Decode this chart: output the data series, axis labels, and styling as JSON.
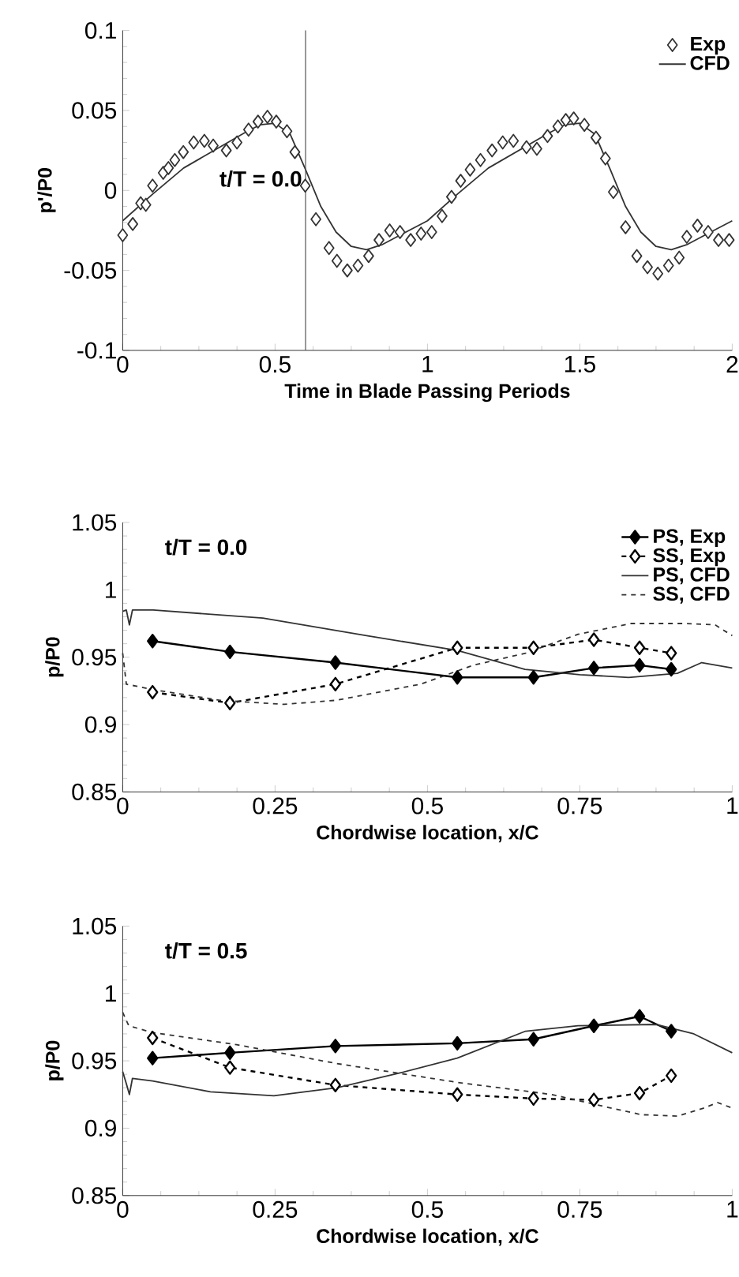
{
  "chart_data": [
    {
      "type": "line",
      "xlabel": "Time in Blade Passing Periods",
      "ylabel": "p'/P0",
      "xlim": [
        0,
        2
      ],
      "ylim": [
        -0.1,
        0.1
      ],
      "xticks": [
        0,
        0.5,
        1,
        1.5,
        2
      ],
      "yticks": [
        -0.1,
        -0.05,
        0,
        0.05,
        0.1
      ],
      "legend": "top right",
      "grid": false,
      "annotations": [
        "t/T = 0.0"
      ],
      "ref_lines": [
        {
          "axis": "x",
          "value": 0.6,
          "color": "#555555"
        }
      ],
      "series": [
        {
          "name": "Exp",
          "type": "scatter",
          "marker": "diamond",
          "color": "#333333",
          "x": [
            0,
            0.033,
            0.059,
            0.076,
            0.098,
            0.133,
            0.15,
            0.171,
            0.199,
            0.233,
            0.268,
            0.297,
            0.34,
            0.375,
            0.413,
            0.444,
            0.475,
            0.504,
            0.539,
            0.565,
            0.599,
            0.634,
            0.677,
            0.703,
            0.737,
            0.772,
            0.807,
            0.841,
            0.876,
            0.91,
            0.945,
            0.979,
            1.014,
            1.048,
            1.079,
            1.109,
            1.14,
            1.174,
            1.212,
            1.247,
            1.282,
            1.325,
            1.359,
            1.394,
            1.428,
            1.454,
            1.48,
            1.515,
            1.553,
            1.584,
            1.61,
            1.65,
            1.687,
            1.722,
            1.756,
            1.791,
            1.826,
            1.851,
            1.886,
            1.921,
            1.955,
            1.99
          ],
          "values": [
            -0.028,
            -0.021,
            -0.008,
            -0.009,
            0.003,
            0.011,
            0.014,
            0.019,
            0.024,
            0.03,
            0.031,
            0.028,
            0.025,
            0.03,
            0.038,
            0.043,
            0.046,
            0.043,
            0.037,
            0.024,
            0.003,
            -0.018,
            -0.036,
            -0.044,
            -0.05,
            -0.047,
            -0.041,
            -0.031,
            -0.025,
            -0.026,
            -0.031,
            -0.027,
            -0.026,
            -0.016,
            -0.004,
            0.006,
            0.013,
            0.019,
            0.025,
            0.03,
            0.031,
            0.027,
            0.026,
            0.034,
            0.04,
            0.044,
            0.045,
            0.041,
            0.033,
            0.02,
            -0.001,
            -0.023,
            -0.041,
            -0.048,
            -0.052,
            -0.047,
            -0.042,
            -0.029,
            -0.022,
            -0.026,
            -0.031,
            -0.031
          ]
        },
        {
          "name": "CFD",
          "type": "line",
          "marker": "none",
          "line_style": "solid",
          "color": "#333333",
          "x": [
            0,
            0.1,
            0.2,
            0.3,
            0.4,
            0.45,
            0.5,
            0.55,
            0.6,
            0.65,
            0.7,
            0.75,
            0.8,
            0.85,
            0.9,
            1,
            1.1,
            1.2,
            1.3,
            1.4,
            1.45,
            1.5,
            1.55,
            1.6,
            1.65,
            1.7,
            1.75,
            1.8,
            1.85,
            1.9,
            2
          ],
          "values": [
            -0.019,
            -0.002,
            0.014,
            0.025,
            0.036,
            0.041,
            0.042,
            0.035,
            0.013,
            -0.01,
            -0.026,
            -0.035,
            -0.037,
            -0.034,
            -0.029,
            -0.019,
            -0.002,
            0.014,
            0.025,
            0.036,
            0.041,
            0.042,
            0.035,
            0.013,
            -0.01,
            -0.026,
            -0.035,
            -0.037,
            -0.034,
            -0.029,
            -0.019
          ]
        }
      ]
    },
    {
      "type": "line",
      "xlabel": "Chordwise location, x/C",
      "ylabel": "p/P0",
      "xlim": [
        0,
        1
      ],
      "ylim": [
        0.85,
        1.05
      ],
      "xticks": [
        0,
        0.25,
        0.5,
        0.75,
        1
      ],
      "yticks": [
        0.85,
        0.9,
        0.95,
        1,
        1.05
      ],
      "legend": "top right",
      "grid": false,
      "annotations": [
        "t/T = 0.0"
      ],
      "series": [
        {
          "name": "PS, Exp",
          "marker": "diamond",
          "line_style": "solid",
          "color": "#000000",
          "x": [
            0.049,
            0.176,
            0.349,
            0.549,
            0.674,
            0.773,
            0.848,
            0.9
          ],
          "values": [
            0.962,
            0.954,
            0.946,
            0.935,
            0.935,
            0.942,
            0.944,
            0.941
          ]
        },
        {
          "name": "SS, Exp",
          "marker": "diamond",
          "line_style": "dashed",
          "color": "#000000",
          "x": [
            0.049,
            0.176,
            0.349,
            0.549,
            0.674,
            0.773,
            0.848,
            0.9
          ],
          "values": [
            0.924,
            0.916,
            0.93,
            0.957,
            0.957,
            0.963,
            0.957,
            0.953
          ]
        },
        {
          "name": "PS, CFD",
          "marker": "none",
          "line_style": "solid",
          "color": "#333333",
          "x": [
            0,
            0.006,
            0.011,
            0.016,
            0.05,
            0.23,
            0.4,
            0.549,
            0.66,
            0.75,
            0.83,
            0.91,
            0.95,
            1
          ],
          "values": [
            0.984,
            0.985,
            0.974,
            0.985,
            0.985,
            0.979,
            0.966,
            0.955,
            0.941,
            0.937,
            0.935,
            0.938,
            0.946,
            0.942
          ]
        },
        {
          "name": "SS, CFD",
          "marker": "none",
          "line_style": "dashed",
          "color": "#333333",
          "x": [
            0,
            0.006,
            0.049,
            0.16,
            0.265,
            0.35,
            0.489,
            0.575,
            0.661,
            0.747,
            0.834,
            0.92,
            0.972,
            1
          ],
          "values": [
            0.953,
            0.93,
            0.926,
            0.918,
            0.915,
            0.918,
            0.93,
            0.944,
            0.953,
            0.967,
            0.975,
            0.975,
            0.974,
            0.966
          ]
        }
      ]
    },
    {
      "type": "line",
      "xlabel": "Chordwise location, x/C",
      "ylabel": "p/P0",
      "xlim": [
        0,
        1
      ],
      "ylim": [
        0.85,
        1.05
      ],
      "xticks": [
        0,
        0.25,
        0.5,
        0.75,
        1
      ],
      "yticks": [
        0.85,
        0.9,
        0.95,
        1,
        1.05
      ],
      "grid": false,
      "annotations": [
        "t/T = 0.5"
      ],
      "series": [
        {
          "marker": "diamond",
          "line_style": "solid",
          "color": "#000000",
          "x": [
            0.049,
            0.176,
            0.349,
            0.549,
            0.674,
            0.773,
            0.848,
            0.9
          ],
          "values": [
            0.952,
            0.956,
            0.961,
            0.963,
            0.966,
            0.976,
            0.983,
            0.972
          ]
        },
        {
          "marker": "diamond",
          "line_style": "dashed",
          "color": "#000000",
          "x": [
            0.049,
            0.176,
            0.349,
            0.549,
            0.674,
            0.773,
            0.848,
            0.9
          ],
          "values": [
            0.967,
            0.945,
            0.932,
            0.925,
            0.922,
            0.921,
            0.926,
            0.939
          ]
        },
        {
          "marker": "none",
          "line_style": "solid",
          "color": "#333333",
          "x": [
            0,
            0.006,
            0.011,
            0.016,
            0.049,
            0.144,
            0.248,
            0.352,
            0.455,
            0.549,
            0.661,
            0.747,
            0.876,
            0.937,
            1
          ],
          "values": [
            0.942,
            0.933,
            0.925,
            0.937,
            0.935,
            0.927,
            0.924,
            0.93,
            0.941,
            0.952,
            0.972,
            0.976,
            0.977,
            0.97,
            0.956
          ]
        },
        {
          "marker": "none",
          "line_style": "dashed",
          "color": "#333333",
          "x": [
            0,
            0.01,
            0.049,
            0.187,
            0.351,
            0.549,
            0.704,
            0.791,
            0.851,
            0.911,
            0.954,
            0.976,
            1
          ],
          "values": [
            0.986,
            0.976,
            0.971,
            0.962,
            0.948,
            0.934,
            0.925,
            0.916,
            0.91,
            0.909,
            0.915,
            0.919,
            0.915
          ]
        }
      ]
    }
  ]
}
